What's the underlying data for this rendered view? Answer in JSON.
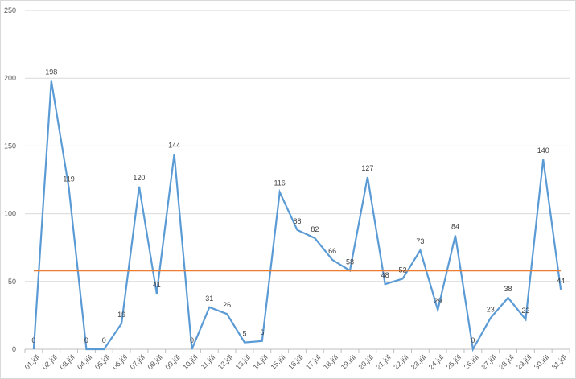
{
  "chart_data": {
    "type": "line",
    "title": "",
    "xlabel": "",
    "ylabel": "",
    "ylim": [
      0,
      250
    ],
    "yticks": [
      0,
      50,
      100,
      150,
      200,
      250
    ],
    "grid": true,
    "legend": "none",
    "categories": [
      "01.júl",
      "02.júl",
      "03.júl",
      "04.júl",
      "05.júl",
      "06.júl",
      "07.júl",
      "08.júl",
      "09.júl",
      "10.júl",
      "11.júl",
      "12.júl",
      "13.júl",
      "14.júl",
      "15.júl",
      "16.júl",
      "17.júl",
      "18.júl",
      "19.júl",
      "20.júl",
      "21.júl",
      "22.júl",
      "23.júl",
      "24.júl",
      "25.júl",
      "26.júl",
      "27.júl",
      "28.júl",
      "29.júl",
      "30.júl",
      "31.júl"
    ],
    "series": [
      {
        "values": [
          0,
          198,
          119,
          0,
          0,
          19,
          120,
          41,
          144,
          0,
          31,
          26,
          5,
          6,
          116,
          88,
          82,
          66,
          58,
          127,
          48,
          52,
          73,
          29,
          84,
          0,
          23,
          38,
          22,
          140,
          44
        ],
        "color": "#5b9bd5",
        "data_labels": true
      },
      {
        "values": [
          58,
          58,
          58,
          58,
          58,
          58,
          58,
          58,
          58,
          58,
          58,
          58,
          58,
          58,
          58,
          58,
          58,
          58,
          58,
          58,
          58,
          58,
          58,
          58,
          58,
          58,
          58,
          58,
          58,
          58,
          58
        ],
        "color": "#ed7d31",
        "data_labels": false
      }
    ]
  }
}
